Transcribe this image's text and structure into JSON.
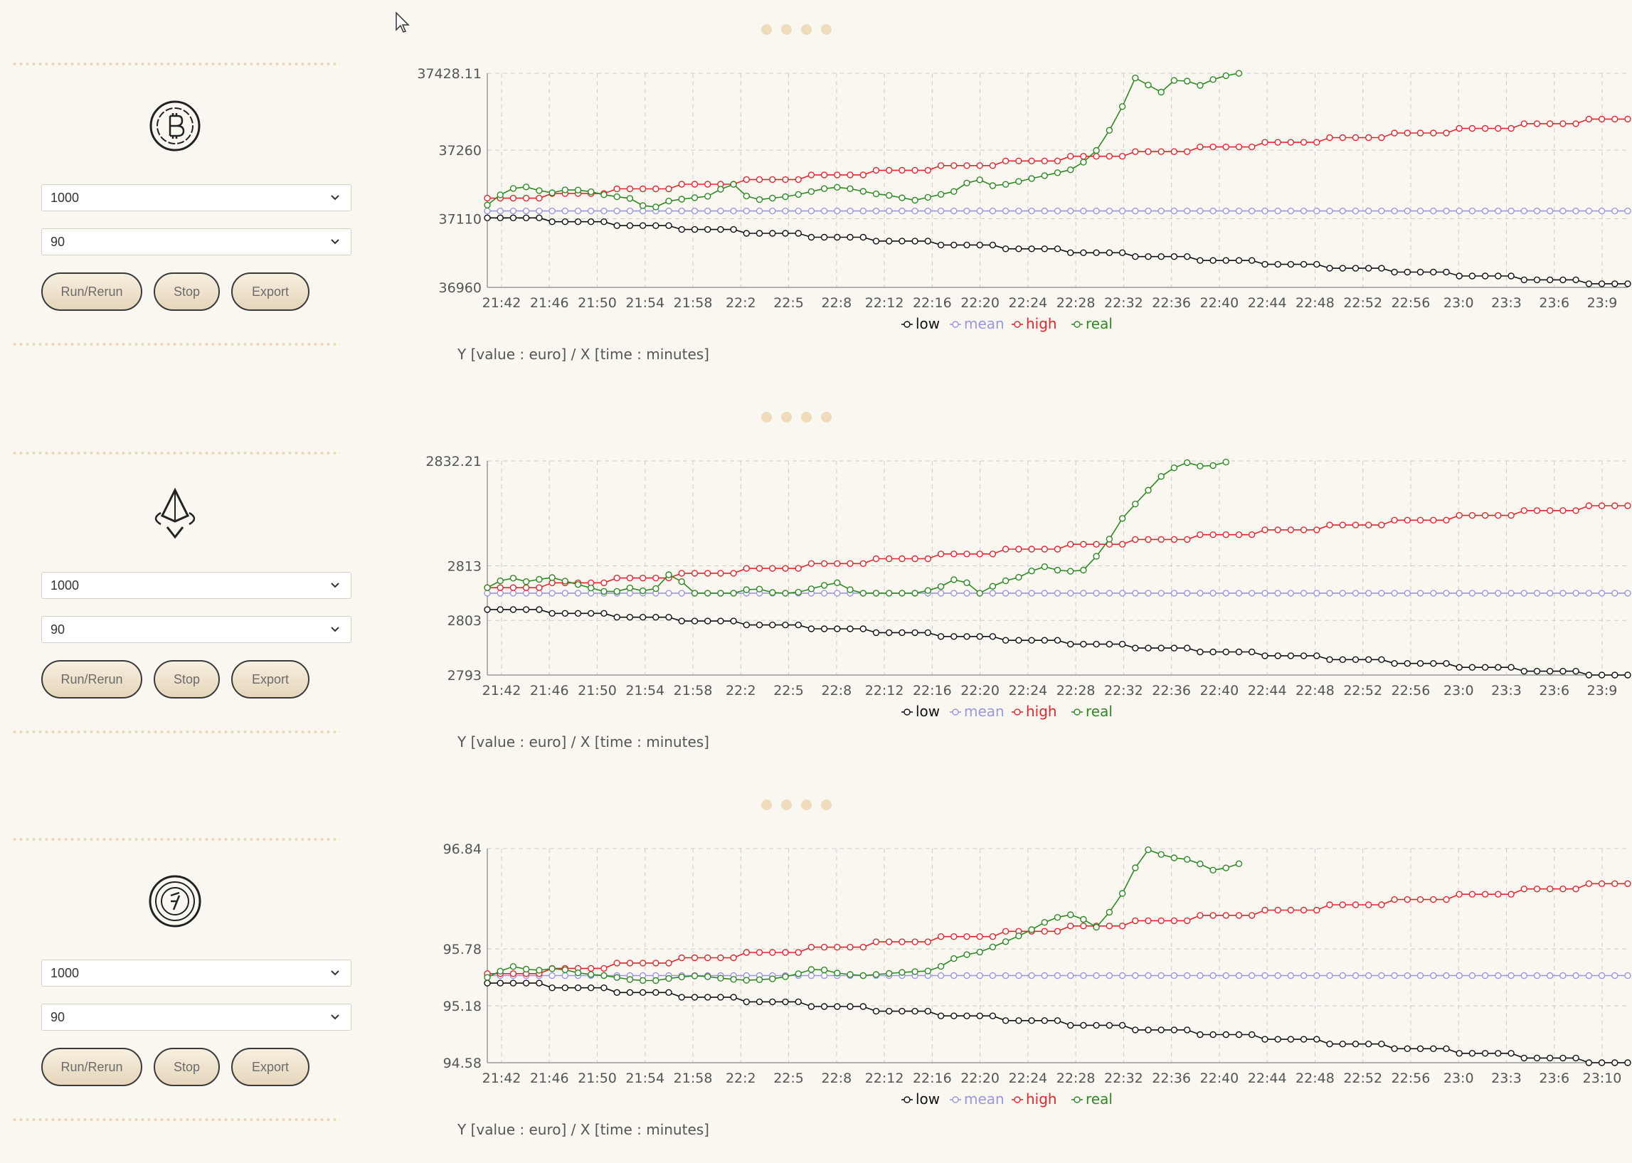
{
  "common": {
    "amount_value": "1000",
    "period_value": "90",
    "run_label": "Run/Rerun",
    "stop_label": "Stop",
    "export_label": "Export",
    "axis_caption": "Y [value : euro] / X [time : minutes]",
    "legend": [
      "low",
      "mean",
      "high",
      "real"
    ],
    "colors": {
      "low": "#111111",
      "mean": "#9b96e0",
      "high": "#e8242c",
      "real": "#2d8a22",
      "grid": "#cccccc",
      "accent": "#efdcbd"
    }
  },
  "coins": [
    {
      "icon": "bitcoin-icon"
    },
    {
      "icon": "ethereum-icon"
    },
    {
      "icon": "solana-icon"
    }
  ],
  "chart_data": [
    {
      "type": "line",
      "x_tick_labels": [
        "21:42",
        "21:46",
        "21:50",
        "21:54",
        "21:58",
        "22:2",
        "22:5",
        "22:8",
        "22:12",
        "22:16",
        "22:20",
        "22:24",
        "22:28",
        "22:32",
        "22:36",
        "22:40",
        "22:44",
        "22:48",
        "22:52",
        "22:56",
        "23:0",
        "23:3",
        "23:6",
        "23:9"
      ],
      "y_ticks": [
        "37428.11",
        "37260",
        "37110",
        "36960"
      ],
      "ylim": [
        36960,
        37428.11
      ],
      "grid": true,
      "legend_position": "bottom",
      "series": [
        {
          "name": "low",
          "x_range": [
            0,
            88
          ],
          "values": [
            37112,
            36968
          ]
        },
        {
          "name": "mean",
          "x_range": [
            0,
            88
          ],
          "values": [
            37127,
            37127
          ]
        },
        {
          "name": "high",
          "x_range": [
            0,
            88
          ],
          "values": [
            37155,
            37328
          ]
        },
        {
          "name": "real",
          "x_range": [
            0,
            58
          ],
          "values": [
            37140,
            37175,
            37180,
            37165,
            37175,
            37170,
            37160,
            37155,
            37130,
            37150,
            37155,
            37160,
            37190,
            37150,
            37155,
            37160,
            37170,
            37180,
            37175,
            37165,
            37160,
            37150,
            37160,
            37170,
            37200,
            37180,
            37190,
            37200,
            37210,
            37220,
            37260,
            37330,
            37428,
            37380,
            37420,
            37400,
            37420,
            37428
          ]
        }
      ]
    },
    {
      "type": "line",
      "x_tick_labels": [
        "21:42",
        "21:46",
        "21:50",
        "21:54",
        "21:58",
        "22:2",
        "22:5",
        "22:8",
        "22:12",
        "22:16",
        "22:20",
        "22:24",
        "22:28",
        "22:32",
        "22:36",
        "22:40",
        "22:44",
        "22:48",
        "22:52",
        "22:56",
        "23:0",
        "23:3",
        "23:6",
        "23:9"
      ],
      "y_ticks": [
        "2832.21",
        "2813",
        "2803",
        "2793"
      ],
      "ylim": [
        2793,
        2832.21
      ],
      "grid": true,
      "legend_position": "bottom",
      "series": [
        {
          "name": "low",
          "x_range": [
            0,
            88
          ],
          "values": [
            2805,
            2793
          ]
        },
        {
          "name": "mean",
          "x_range": [
            0,
            88
          ],
          "values": [
            2808,
            2808
          ]
        },
        {
          "name": "high",
          "x_range": [
            0,
            88
          ],
          "values": [
            2809,
            2824
          ]
        },
        {
          "name": "real",
          "x_range": [
            0,
            57
          ],
          "values": [
            2809,
            2811,
            2810,
            2811,
            2810,
            2809,
            2808,
            2809,
            2808,
            2812,
            2808,
            2808,
            2808,
            2809,
            2808,
            2808,
            2809,
            2810,
            2808,
            2808,
            2808,
            2808,
            2809,
            2811,
            2808,
            2810,
            2811,
            2813,
            2812,
            2812,
            2816,
            2822,
            2826,
            2830,
            2832,
            2831,
            2832
          ]
        }
      ]
    },
    {
      "type": "line",
      "x_tick_labels": [
        "21:42",
        "21:46",
        "21:50",
        "21:54",
        "21:58",
        "22:2",
        "22:5",
        "22:8",
        "22:12",
        "22:16",
        "22:20",
        "22:24",
        "22:28",
        "22:32",
        "22:36",
        "22:40",
        "22:44",
        "22:48",
        "22:52",
        "22:56",
        "23:0",
        "23:3",
        "23:6",
        "23:10"
      ],
      "y_ticks": [
        "96.84",
        "95.78",
        "95.18",
        "94.58"
      ],
      "ylim": [
        94.58,
        96.84
      ],
      "grid": true,
      "legend_position": "bottom",
      "series": [
        {
          "name": "low",
          "x_range": [
            0,
            88
          ],
          "values": [
            95.42,
            94.58
          ]
        },
        {
          "name": "mean",
          "x_range": [
            0,
            88
          ],
          "values": [
            95.5,
            95.5
          ]
        },
        {
          "name": "high",
          "x_range": [
            0,
            88
          ],
          "values": [
            95.52,
            96.47
          ]
        },
        {
          "name": "real",
          "x_range": [
            0,
            58
          ],
          "values": [
            95.48,
            95.6,
            95.55,
            95.58,
            95.52,
            95.5,
            95.46,
            95.44,
            95.48,
            95.5,
            95.47,
            95.45,
            95.46,
            95.5,
            95.58,
            95.52,
            95.5,
            95.52,
            95.54,
            95.55,
            95.7,
            95.75,
            95.85,
            95.96,
            96.1,
            96.15,
            96.0,
            96.35,
            96.84,
            96.75,
            96.72,
            96.6,
            96.68
          ]
        }
      ]
    }
  ]
}
